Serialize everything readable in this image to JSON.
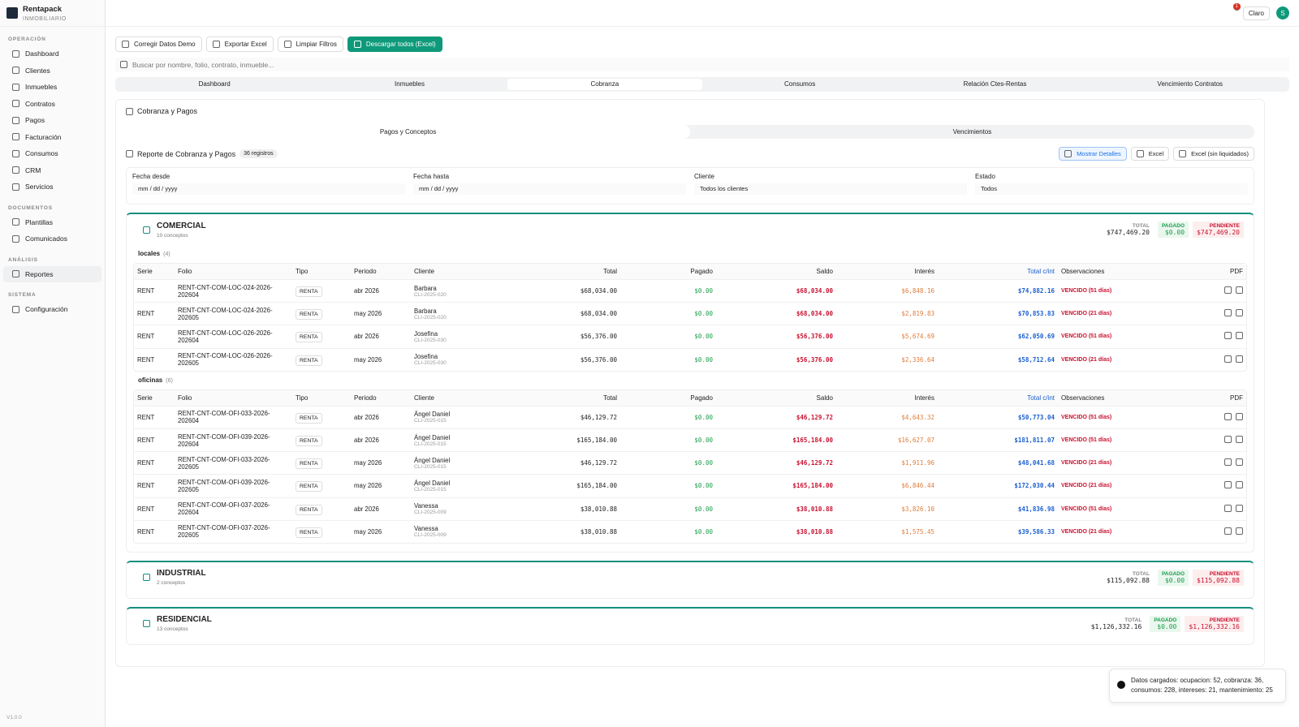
{
  "sidebar": {
    "brand": "Rentapack",
    "brand_sub": "INMOBILIARIO",
    "version": "V1.0.0",
    "sections": [
      {
        "title": "OPERACIÓN",
        "items": [
          "Dashboard",
          "Clientes",
          "Inmuebles",
          "Contratos",
          "Pagos",
          "Facturación",
          "Consumos",
          "CRM",
          "Servicios"
        ]
      },
      {
        "title": "DOCUMENTOS",
        "items": [
          "Plantillas",
          "Comunicados"
        ]
      },
      {
        "title": "ANÁLISIS",
        "items": [
          "Reportes"
        ]
      },
      {
        "title": "SISTEMA",
        "items": [
          "Configuración"
        ]
      }
    ]
  },
  "topbar": {
    "notifications": "1",
    "theme": "Claro",
    "avatar": "S"
  },
  "toolbar": {
    "buttons": [
      "Corregir Datos Demo",
      "Exportar Excel",
      "Limpiar Filtros",
      "Descargar todos (Excel)"
    ],
    "search": "Buscar por nombre, folio, contrato, inmueble..."
  },
  "tabs": [
    "Dashboard",
    "Inmuebles",
    "Cobranza",
    "Consumos",
    "Relación Ctes-Rentas",
    "Vencimiento Contratos"
  ],
  "section_title": "Cobranza y Pagos",
  "subtabs": [
    "Pagos y Conceptos",
    "Vencimientos"
  ],
  "report": {
    "title": "Reporte de Cobranza y Pagos",
    "count": "36 registros",
    "actions": [
      "Mostrar Detalles",
      "Excel",
      "Excel (sin liquidados)"
    ]
  },
  "filters": [
    {
      "label": "Fecha desde",
      "value": "mm / dd / yyyy"
    },
    {
      "label": "Fecha hasta",
      "value": "mm / dd / yyyy"
    },
    {
      "label": "Cliente",
      "value": "Todos los clientes"
    },
    {
      "label": "Estado",
      "value": "Todos"
    }
  ],
  "summary_labels": {
    "total": "TOTAL",
    "paid": "PAGADO",
    "pending": "PENDIENTE"
  },
  "headers": [
    "Serie",
    "Folio",
    "Tipo",
    "Periodo",
    "Cliente",
    "Total",
    "Pagado",
    "Saldo",
    "Interés",
    "Total c/int",
    "Observaciones",
    "PDF"
  ],
  "groups": [
    {
      "name": "COMERCIAL",
      "count": "10 conceptos",
      "total": "$747,469.20",
      "paid": "$0.00",
      "pending": "$747,469.20",
      "subgroups": [
        {
          "name": "locales",
          "count": "(4)",
          "rows": [
            {
              "serie": "RENT",
              "folio": "RENT-CNT-COM-LOC-024-2026-202604",
              "tipo": "RENTA",
              "periodo": "abr 2026",
              "cliente": "Barbara",
              "cliente_id": "CLI-2025-020",
              "total": "$68,034.00",
              "pagado": "$0.00",
              "saldo": "$68,034.00",
              "interes": "$6,848.16",
              "total_int": "$74,882.16",
              "obs": "VENCIDO (51 días)"
            },
            {
              "serie": "RENT",
              "folio": "RENT-CNT-COM-LOC-024-2026-202605",
              "tipo": "RENTA",
              "periodo": "may 2026",
              "cliente": "Barbara",
              "cliente_id": "CLI-2025-020",
              "total": "$68,034.00",
              "pagado": "$0.00",
              "saldo": "$68,034.00",
              "interes": "$2,819.83",
              "total_int": "$70,853.83",
              "obs": "VENCIDO (21 días)"
            },
            {
              "serie": "RENT",
              "folio": "RENT-CNT-COM-LOC-026-2026-202604",
              "tipo": "RENTA",
              "periodo": "abr 2026",
              "cliente": "Josefina",
              "cliente_id": "CLI-2025-030",
              "total": "$56,376.00",
              "pagado": "$0.00",
              "saldo": "$56,376.00",
              "interes": "$5,674.69",
              "total_int": "$62,050.69",
              "obs": "VENCIDO (51 días)"
            },
            {
              "serie": "RENT",
              "folio": "RENT-CNT-COM-LOC-026-2026-202605",
              "tipo": "RENTA",
              "periodo": "may 2026",
              "cliente": "Josefina",
              "cliente_id": "CLI-2025-030",
              "total": "$56,376.00",
              "pagado": "$0.00",
              "saldo": "$56,376.00",
              "interes": "$2,336.64",
              "total_int": "$58,712.64",
              "obs": "VENCIDO (21 días)"
            }
          ]
        },
        {
          "name": "oficinas",
          "count": "(6)",
          "rows": [
            {
              "serie": "RENT",
              "folio": "RENT-CNT-COM-OFI-033-2026-202604",
              "tipo": "RENTA",
              "periodo": "abr 2026",
              "cliente": "Ángel Daniel",
              "cliente_id": "CLI-2025-015",
              "total": "$46,129.72",
              "pagado": "$0.00",
              "saldo": "$46,129.72",
              "interes": "$4,643.32",
              "total_int": "$50,773.04",
              "obs": "VENCIDO (51 días)"
            },
            {
              "serie": "RENT",
              "folio": "RENT-CNT-COM-OFI-039-2026-202604",
              "tipo": "RENTA",
              "periodo": "abr 2026",
              "cliente": "Ángel Daniel",
              "cliente_id": "CLI-2025-015",
              "total": "$165,184.00",
              "pagado": "$0.00",
              "saldo": "$165,184.00",
              "interes": "$16,627.07",
              "total_int": "$181,811.07",
              "obs": "VENCIDO (51 días)"
            },
            {
              "serie": "RENT",
              "folio": "RENT-CNT-COM-OFI-033-2026-202605",
              "tipo": "RENTA",
              "periodo": "may 2026",
              "cliente": "Ángel Daniel",
              "cliente_id": "CLI-2025-015",
              "total": "$46,129.72",
              "pagado": "$0.00",
              "saldo": "$46,129.72",
              "interes": "$1,911.96",
              "total_int": "$48,041.68",
              "obs": "VENCIDO (21 días)"
            },
            {
              "serie": "RENT",
              "folio": "RENT-CNT-COM-OFI-039-2026-202605",
              "tipo": "RENTA",
              "periodo": "may 2026",
              "cliente": "Ángel Daniel",
              "cliente_id": "CLI-2025-015",
              "total": "$165,184.00",
              "pagado": "$0.00",
              "saldo": "$165,184.00",
              "interes": "$6,846.44",
              "total_int": "$172,030.44",
              "obs": "VENCIDO (21 días)"
            },
            {
              "serie": "RENT",
              "folio": "RENT-CNT-COM-OFI-037-2026-202604",
              "tipo": "RENTA",
              "periodo": "abr 2026",
              "cliente": "Vanessa",
              "cliente_id": "CLI-2025-009",
              "total": "$38,010.88",
              "pagado": "$0.00",
              "saldo": "$38,010.88",
              "interes": "$3,826.10",
              "total_int": "$41,836.98",
              "obs": "VENCIDO (51 días)"
            },
            {
              "serie": "RENT",
              "folio": "RENT-CNT-COM-OFI-037-2026-202605",
              "tipo": "RENTA",
              "periodo": "may 2026",
              "cliente": "Vanessa",
              "cliente_id": "CLI-2025-009",
              "total": "$38,010.88",
              "pagado": "$0.00",
              "saldo": "$38,010.88",
              "interes": "$1,575.45",
              "total_int": "$39,586.33",
              "obs": "VENCIDO (21 días)"
            }
          ]
        }
      ]
    },
    {
      "name": "INDUSTRIAL",
      "count": "2 conceptos",
      "total": "$115,092.88",
      "paid": "$0.00",
      "pending": "$115,092.88",
      "subgroups": []
    },
    {
      "name": "RESIDENCIAL",
      "count": "13 conceptos",
      "total": "$1,126,332.16",
      "paid": "$0.00",
      "pending": "$1,126,332.16",
      "subgroups": []
    }
  ],
  "toast": "Datos cargados: ocupacion: 52, cobranza: 36, consumos: 228, intereses: 21, mantenimiento: 25"
}
